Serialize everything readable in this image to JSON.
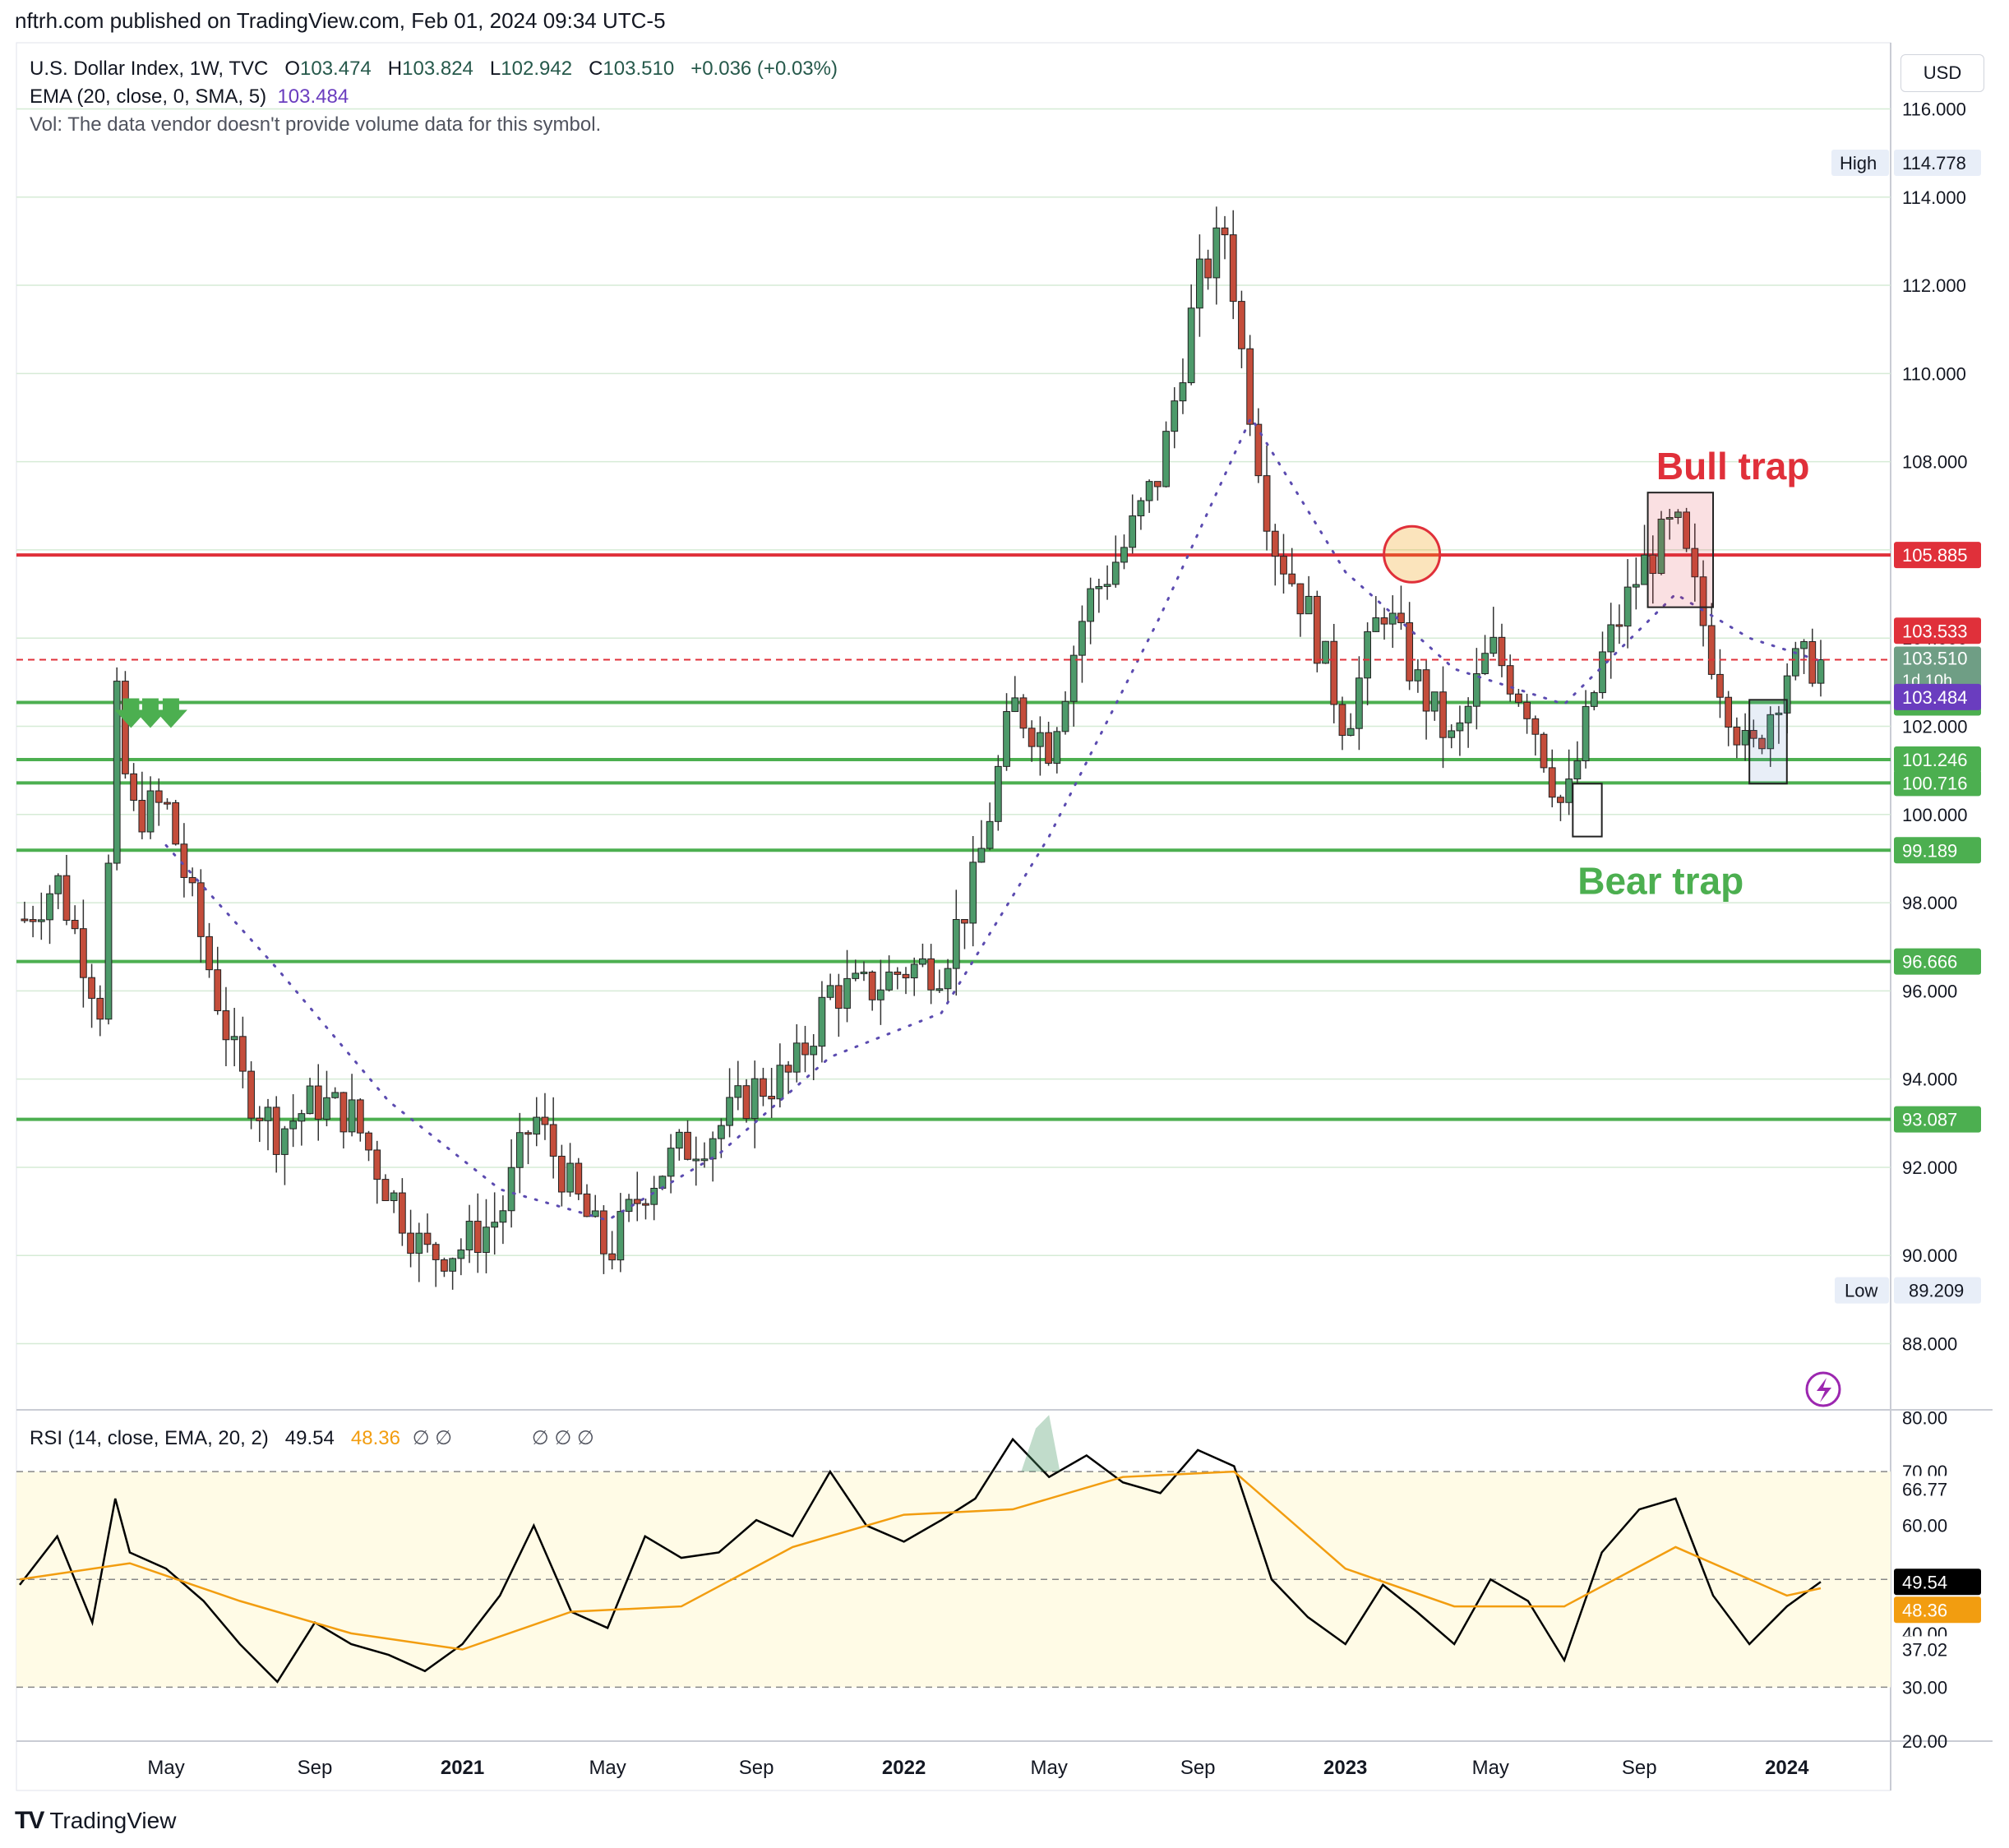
{
  "header": {
    "published": "nftrh.com published on TradingView.com, Feb 01, 2024 09:34 UTC-5",
    "symbol": "U.S. Dollar Index, 1W, TVC",
    "open_label": "O",
    "open": "103.474",
    "high_label": "H",
    "high": "103.824",
    "low_label": "L",
    "low": "102.942",
    "close_label": "C",
    "close": "103.510",
    "change": "+0.036 (+0.03%)",
    "ema_label": "EMA (20, close, 0, SMA, 5)",
    "ema_value": "103.484",
    "vol_text": "Vol: The data vendor doesn't provide volume data for this symbol.",
    "currency": "USD"
  },
  "rsi_legend": {
    "label": "RSI (14, close, EMA, 20, 2)",
    "rsi": "49.54",
    "rsi_ma": "48.36",
    "empty_a": "∅ ∅",
    "empty_b": "∅ ∅ ∅"
  },
  "footer": {
    "logo_mark": "TV",
    "logo_text": "TradingView"
  },
  "colors": {
    "up": "#26594b",
    "up_fill": "#4d9a6a",
    "down": "#c0392b",
    "down_fill": "#c44d3b",
    "red_line": "#e0303a",
    "green_line": "#4caf50",
    "ema": "#5b4bb0",
    "rsi": "#000000",
    "rsi_ma": "#f29d10",
    "rsi_band": "#fffbe6"
  },
  "chart_data": {
    "type": "candlestick",
    "y_axis": {
      "min": 86.5,
      "max": 117.5,
      "ticks": [
        "116.000",
        "114.000",
        "112.000",
        "110.000",
        "108.000",
        "106.000",
        "104.000",
        "102.000",
        "100.000",
        "98.000",
        "96.000",
        "94.000",
        "92.000",
        "90.000",
        "88.000"
      ]
    },
    "x_axis": {
      "labels": [
        {
          "text": "May",
          "date": "2020-05"
        },
        {
          "text": "Sep",
          "date": "2020-09"
        },
        {
          "text": "2021",
          "date": "2021-01",
          "bold": true
        },
        {
          "text": "May",
          "date": "2021-05"
        },
        {
          "text": "Sep",
          "date": "2021-09"
        },
        {
          "text": "2022",
          "date": "2022-01",
          "bold": true
        },
        {
          "text": "May",
          "date": "2022-05"
        },
        {
          "text": "Sep",
          "date": "2022-09"
        },
        {
          "text": "2023",
          "date": "2023-01",
          "bold": true
        },
        {
          "text": "May",
          "date": "2023-05"
        },
        {
          "text": "Sep",
          "date": "2023-09"
        },
        {
          "text": "2024",
          "date": "2024-01",
          "bold": true
        }
      ]
    },
    "price_path": [
      [
        "2020-01",
        97.5
      ],
      [
        "2020-02",
        98.5
      ],
      [
        "2020-03-10",
        95.5
      ],
      [
        "2020-03-20",
        102.8
      ],
      [
        "2020-04",
        100.0
      ],
      [
        "2020-05",
        100.2
      ],
      [
        "2020-06",
        97.0
      ],
      [
        "2020-07",
        94.0
      ],
      [
        "2020-08",
        92.8
      ],
      [
        "2020-09",
        93.5
      ],
      [
        "2020-10",
        93.2
      ],
      [
        "2020-11",
        91.5
      ],
      [
        "2020-12",
        90.0
      ],
      [
        "2021-01",
        90.2
      ],
      [
        "2021-02",
        90.9
      ],
      [
        "2021-03",
        93.2
      ],
      [
        "2021-04",
        91.5
      ],
      [
        "2021-05",
        90.0
      ],
      [
        "2021-06",
        91.6
      ],
      [
        "2021-07",
        92.4
      ],
      [
        "2021-08",
        92.9
      ],
      [
        "2021-09",
        93.8
      ],
      [
        "2021-10",
        94.1
      ],
      [
        "2021-11",
        96.0
      ],
      [
        "2021-12",
        96.0
      ],
      [
        "2022-01",
        96.5
      ],
      [
        "2022-02",
        96.6
      ],
      [
        "2022-03",
        98.5
      ],
      [
        "2022-04",
        102.5
      ],
      [
        "2022-05",
        101.6
      ],
      [
        "2022-06",
        104.8
      ],
      [
        "2022-07",
        106.0
      ],
      [
        "2022-08",
        107.8
      ],
      [
        "2022-09",
        112.0
      ],
      [
        "2022-09-28",
        113.5
      ],
      [
        "2022-10",
        111.5
      ],
      [
        "2022-11",
        106.3
      ],
      [
        "2022-12",
        104.6
      ],
      [
        "2023-01",
        102.0
      ],
      [
        "2023-02",
        104.8
      ],
      [
        "2023-03",
        103.0
      ],
      [
        "2023-04",
        101.5
      ],
      [
        "2023-05",
        103.8
      ],
      [
        "2023-06",
        102.5
      ],
      [
        "2023-07",
        100.0
      ],
      [
        "2023-08",
        103.5
      ],
      [
        "2023-09",
        105.5
      ],
      [
        "2023-10",
        106.6
      ],
      [
        "2023-11",
        103.5
      ],
      [
        "2023-12",
        101.2
      ],
      [
        "2024-01",
        103.3
      ],
      [
        "2024-01-29",
        103.5
      ]
    ],
    "candle_count": 215,
    "ema_points": [
      [
        "2020-05",
        99.3
      ],
      [
        "2020-08",
        96.5
      ],
      [
        "2020-11",
        93.5
      ],
      [
        "2021-02",
        91.5
      ],
      [
        "2021-05",
        90.8
      ],
      [
        "2021-08",
        92.3
      ],
      [
        "2021-11",
        94.5
      ],
      [
        "2022-02",
        95.5
      ],
      [
        "2022-05",
        99.5
      ],
      [
        "2022-08",
        104.5
      ],
      [
        "2022-10-15",
        109.0
      ],
      [
        "2023-01",
        105.5
      ],
      [
        "2023-04",
        103.3
      ],
      [
        "2023-07",
        102.5
      ],
      [
        "2023-10",
        105.0
      ],
      [
        "2023-12",
        104.0
      ],
      [
        "2024-01-29",
        103.48
      ]
    ],
    "levels": [
      {
        "value": 105.885,
        "label": "105.885",
        "color": "red"
      },
      {
        "value": 102.541,
        "label": "102.541",
        "color": "green"
      },
      {
        "value": 101.246,
        "label": "101.246",
        "color": "green"
      },
      {
        "value": 100.716,
        "label": "100.716",
        "color": "green"
      },
      {
        "value": 99.189,
        "label": "99.189",
        "color": "green"
      },
      {
        "value": 96.666,
        "label": "96.666",
        "color": "green"
      },
      {
        "value": 93.087,
        "label": "93.087",
        "color": "green"
      }
    ],
    "price_labels": {
      "high_label": "High",
      "high_value": "114.778",
      "high": 114.778,
      "low_label": "Low",
      "low_value": "89.209",
      "low": 89.209,
      "prev_close": "103.533",
      "prev_close_value": 103.533,
      "last": "103.510",
      "countdown": "1d 10h",
      "last_value": 103.51,
      "ema_tag": "103.484",
      "ema_value": 103.484
    },
    "annotations": [
      {
        "text": "Bull trap",
        "color": "#e0303a"
      },
      {
        "text": "Bear trap",
        "color": "#4caf50"
      }
    ],
    "rsi": {
      "y_axis": {
        "min": 20,
        "max": 81,
        "ticks": [
          "80.00",
          "70.00",
          "60.00",
          "50.00",
          "40.00",
          "30.00",
          "20.00"
        ]
      },
      "band_upper": 70,
      "band_lower": 30,
      "mid": 50,
      "tags": {
        "upper": "66.77",
        "rsi": "49.54",
        "rsi_ma": "48.36",
        "lower": "37.02"
      },
      "rsi_path": [
        [
          "2020-01",
          49
        ],
        [
          "2020-02",
          58
        ],
        [
          "2020-03",
          42
        ],
        [
          "2020-03-20",
          65
        ],
        [
          "2020-04",
          55
        ],
        [
          "2020-05",
          52
        ],
        [
          "2020-06",
          46
        ],
        [
          "2020-07",
          38
        ],
        [
          "2020-08",
          31
        ],
        [
          "2020-09",
          42
        ],
        [
          "2020-10",
          38
        ],
        [
          "2020-11",
          36
        ],
        [
          "2020-12",
          33
        ],
        [
          "2021-01",
          38
        ],
        [
          "2021-02",
          47
        ],
        [
          "2021-03",
          60
        ],
        [
          "2021-04",
          44
        ],
        [
          "2021-05",
          41
        ],
        [
          "2021-06",
          58
        ],
        [
          "2021-07",
          54
        ],
        [
          "2021-08",
          55
        ],
        [
          "2021-09",
          61
        ],
        [
          "2021-10",
          58
        ],
        [
          "2021-11",
          70
        ],
        [
          "2021-12",
          60
        ],
        [
          "2022-01",
          57
        ],
        [
          "2022-02",
          61
        ],
        [
          "2022-03",
          65
        ],
        [
          "2022-04",
          76
        ],
        [
          "2022-05",
          69
        ],
        [
          "2022-06",
          73
        ],
        [
          "2022-07",
          68
        ],
        [
          "2022-08",
          66
        ],
        [
          "2022-09",
          74
        ],
        [
          "2022-10",
          71
        ],
        [
          "2022-11",
          50
        ],
        [
          "2022-12",
          43
        ],
        [
          "2023-01",
          38
        ],
        [
          "2023-02",
          49
        ],
        [
          "2023-03",
          44
        ],
        [
          "2023-04",
          38
        ],
        [
          "2023-05",
          50
        ],
        [
          "2023-06",
          46
        ],
        [
          "2023-07",
          35
        ],
        [
          "2023-08",
          55
        ],
        [
          "2023-09",
          63
        ],
        [
          "2023-10",
          65
        ],
        [
          "2023-11",
          47
        ],
        [
          "2023-12",
          38
        ],
        [
          "2024-01",
          45
        ],
        [
          "2024-01-29",
          49.54
        ]
      ],
      "rsi_ma_path": [
        [
          "2020-01",
          50
        ],
        [
          "2020-04",
          53
        ],
        [
          "2020-07",
          46
        ],
        [
          "2020-10",
          40
        ],
        [
          "2021-01",
          37
        ],
        [
          "2021-04",
          44
        ],
        [
          "2021-07",
          45
        ],
        [
          "2021-10",
          56
        ],
        [
          "2022-01",
          62
        ],
        [
          "2022-04",
          63
        ],
        [
          "2022-07",
          69
        ],
        [
          "2022-10",
          70
        ],
        [
          "2023-01",
          52
        ],
        [
          "2023-04",
          45
        ],
        [
          "2023-07",
          45
        ],
        [
          "2023-10",
          56
        ],
        [
          "2024-01",
          47
        ],
        [
          "2024-01-29",
          48.36
        ]
      ]
    }
  }
}
